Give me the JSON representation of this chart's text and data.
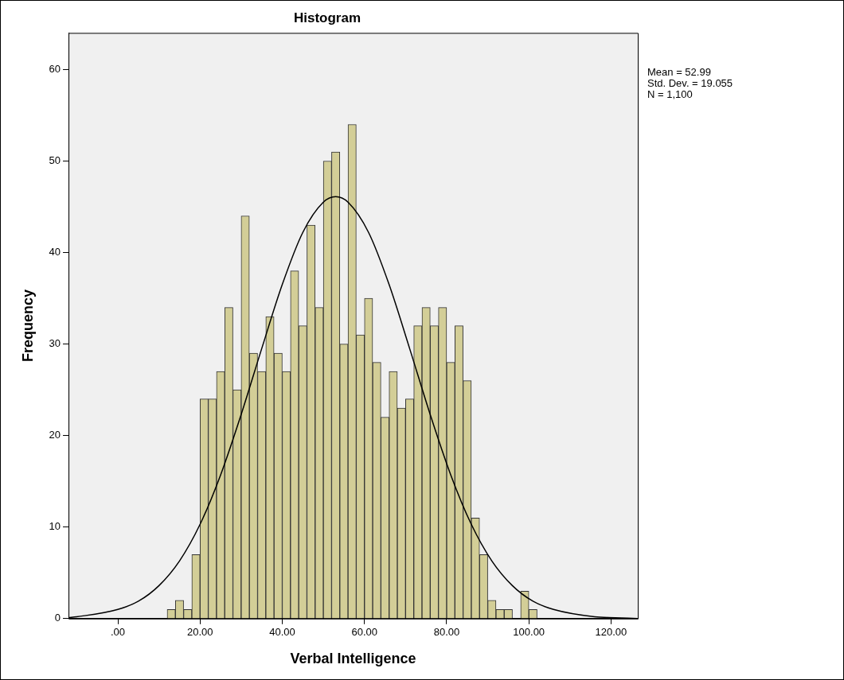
{
  "chart_data": {
    "type": "histogram",
    "title": "Histogram",
    "xlabel": "Verbal Intelligence",
    "ylabel": "Frequency",
    "bins": [
      12,
      14,
      16,
      18,
      20,
      22,
      24,
      26,
      28,
      30,
      32,
      34,
      36,
      38,
      40,
      42,
      44,
      46,
      48,
      50,
      52,
      54,
      56,
      58,
      60,
      62,
      64,
      66,
      68,
      70,
      72,
      74,
      76,
      78,
      80,
      82,
      84,
      86,
      88,
      90,
      92,
      94,
      96,
      98,
      100,
      102
    ],
    "series": [
      {
        "color": "#d3ce97",
        "values": [
          1,
          2,
          1,
          7,
          24,
          24,
          27,
          34,
          25,
          44,
          29,
          27,
          33,
          29,
          27,
          38,
          32,
          43,
          34,
          50,
          51,
          30,
          54,
          31,
          35,
          28,
          22,
          27,
          23,
          24,
          32,
          34,
          32,
          34,
          28,
          32,
          26,
          11,
          7,
          2,
          1,
          1,
          0,
          3,
          1
        ]
      },
      {
        "type": "line",
        "color": "#000000",
        "x": [
          -12,
          -10,
          0,
          5,
          10,
          15,
          20,
          25,
          30,
          35,
          40,
          45,
          50,
          53,
          56,
          61,
          66,
          71,
          76,
          81,
          86,
          91,
          96,
          101,
          106,
          116,
          121,
          126.5
        ],
        "values": [
          0.1,
          0.2,
          1,
          1.9,
          3.6,
          6.3,
          10.3,
          15.7,
          22.3,
          29.5,
          36.5,
          42.2,
          45.5,
          46.1,
          45.5,
          42.2,
          36.5,
          29.5,
          22.3,
          15.7,
          10.3,
          6.3,
          3.6,
          1.9,
          1,
          0.2,
          0.1,
          0
        ]
      }
    ],
    "xlim": [
      -12,
      126.5
    ],
    "xticks": [
      {
        "value": 0,
        "label": ".00"
      },
      {
        "value": 20,
        "label": "20.00"
      },
      {
        "value": 40,
        "label": "40.00"
      },
      {
        "value": 60,
        "label": "60.00"
      },
      {
        "value": 80,
        "label": "80.00"
      },
      {
        "value": 100,
        "label": "100.00"
      },
      {
        "value": 120,
        "label": "120.00"
      }
    ],
    "ylim": [
      0,
      64
    ],
    "yticks": [
      0,
      10,
      20,
      30,
      40,
      50,
      60
    ],
    "annotations": [
      "Mean = 52.99",
      "Std. Dev. = 19.055",
      "N = 1,100"
    ],
    "grid": false,
    "legend": false
  }
}
